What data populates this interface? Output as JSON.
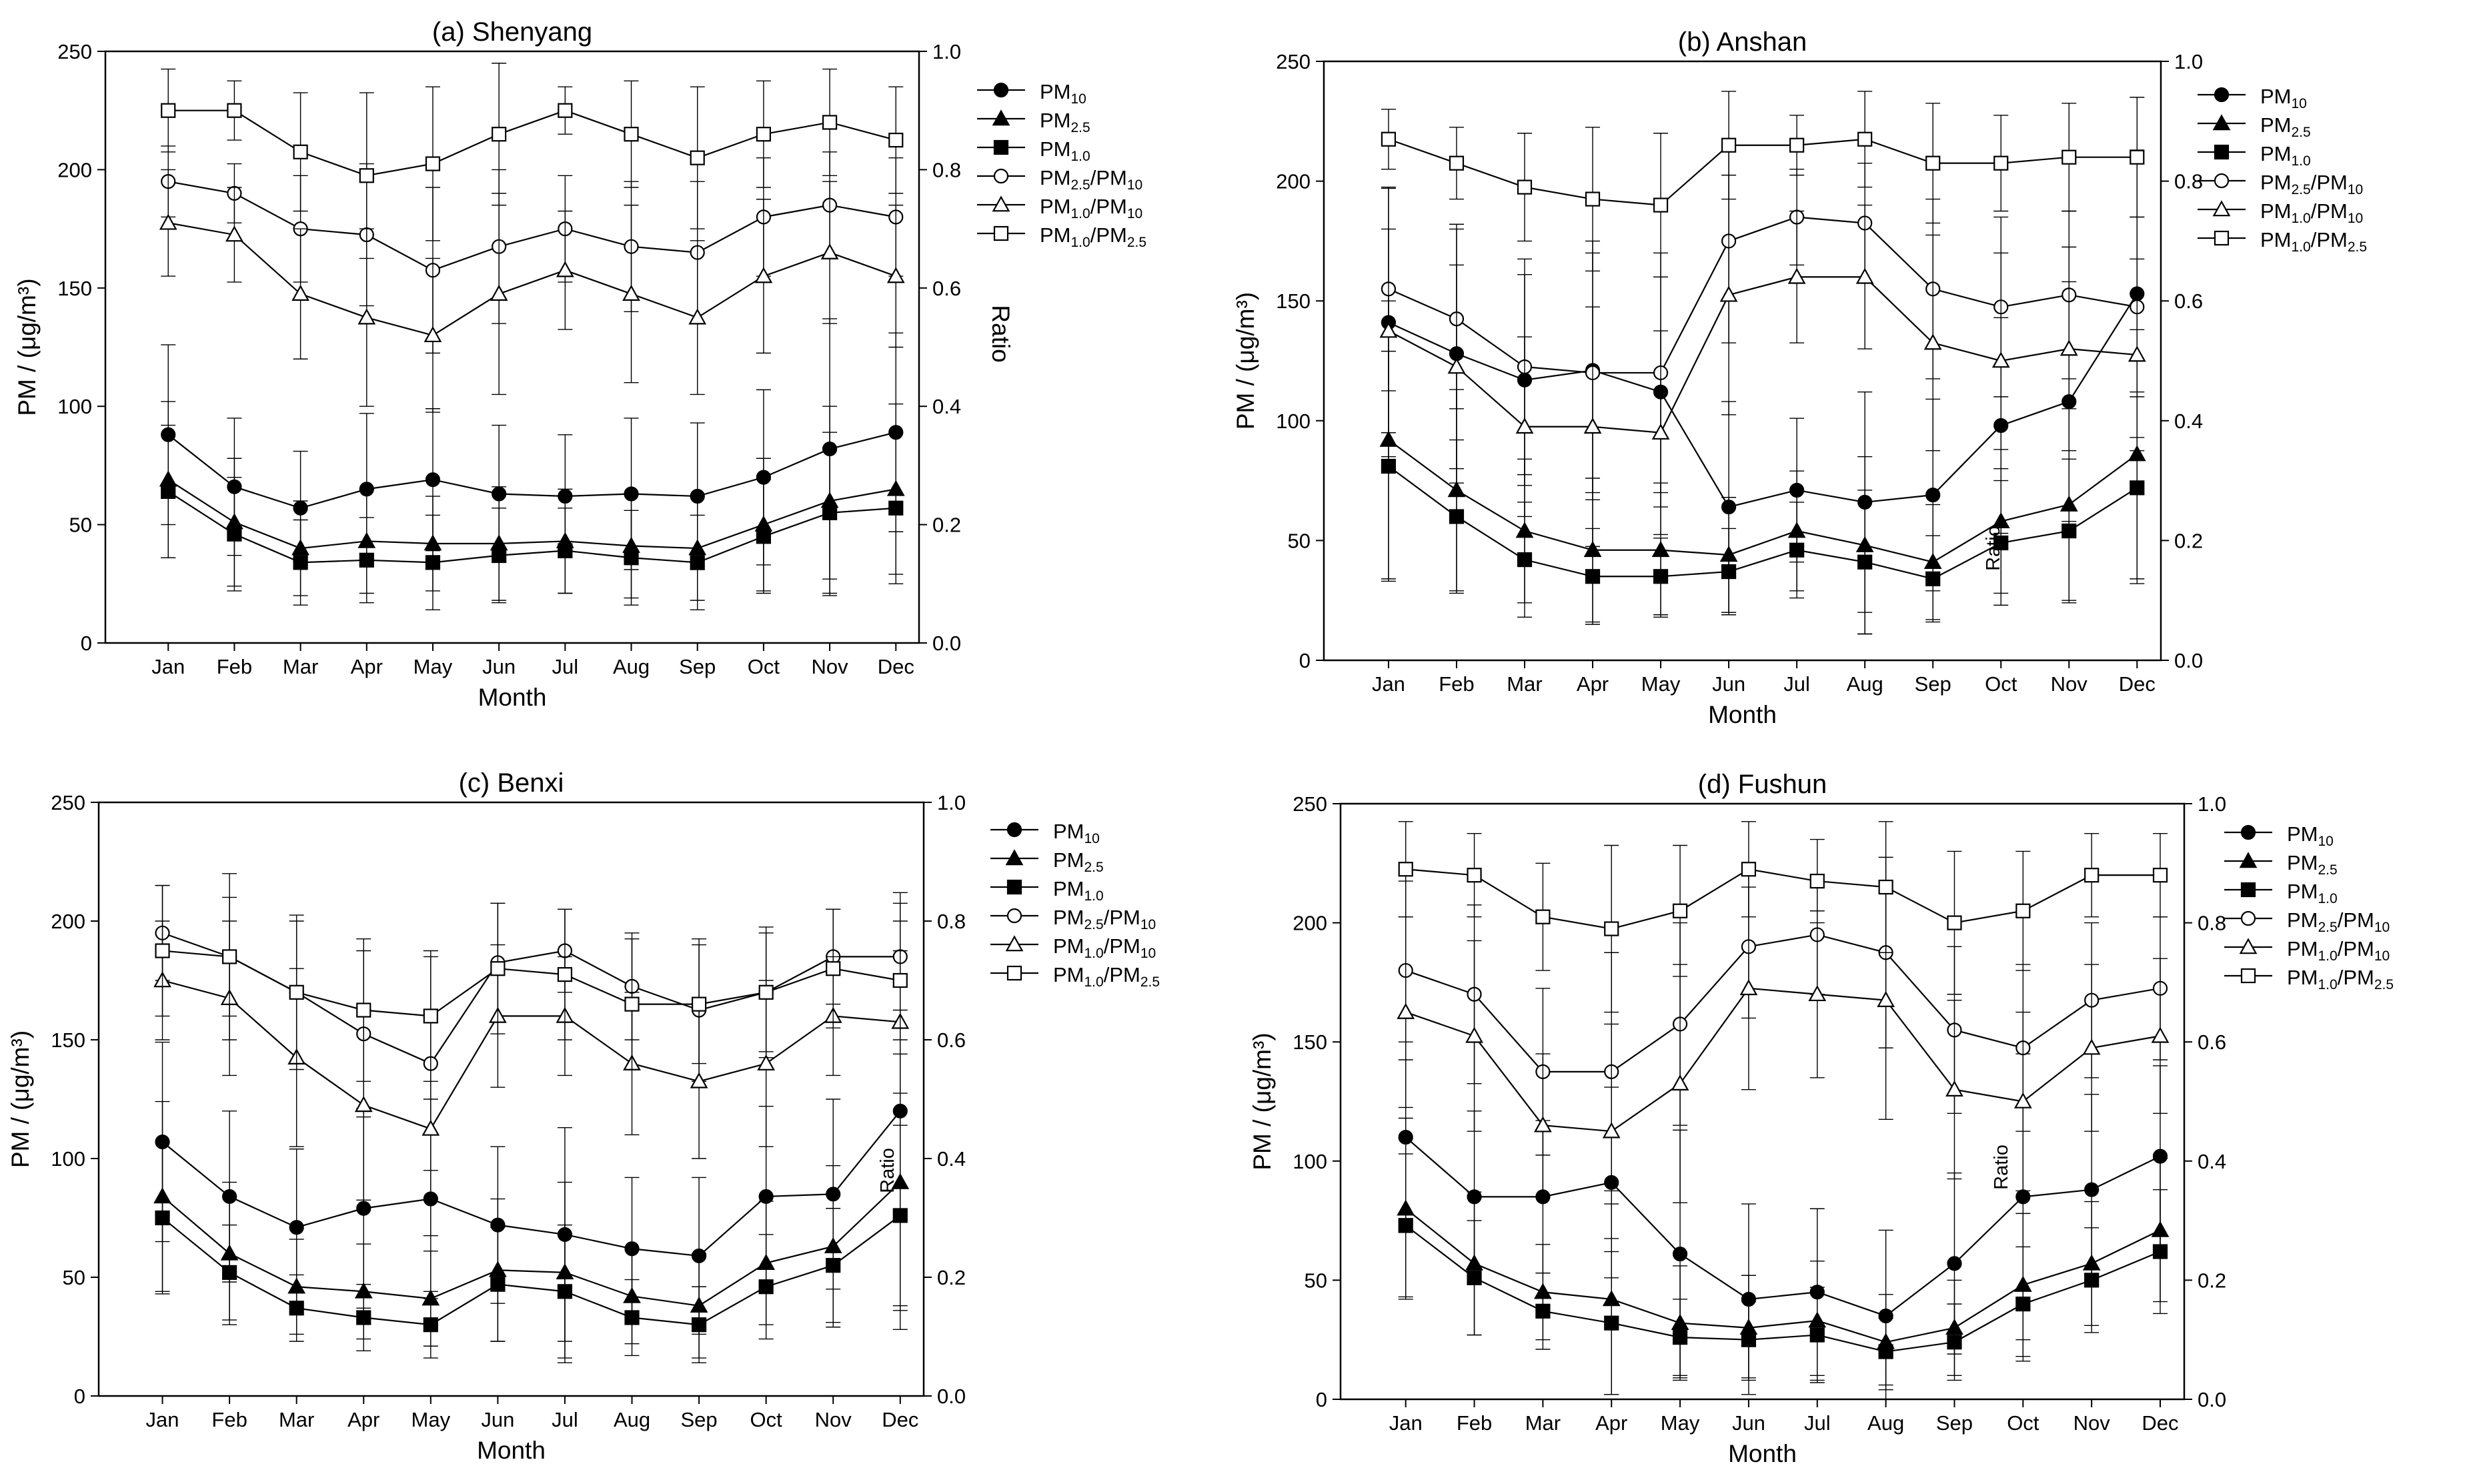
{
  "chart_data": [
    {
      "type": "line",
      "title": "(a) Shenyang",
      "xlabel": "Month",
      "ylabel": "PM / (μg/m³)",
      "y2label": "Ratio",
      "categories": [
        "Jan",
        "Feb",
        "Mar",
        "Apr",
        "May",
        "Jun",
        "Jul",
        "Aug",
        "Sep",
        "Oct",
        "Nov",
        "Dec"
      ],
      "ylim": [
        0,
        250
      ],
      "y2lim": [
        0.0,
        1.0
      ],
      "yticks": [
        "0",
        "50",
        "100",
        "150",
        "200",
        "250"
      ],
      "y2ticks": [
        "0.0",
        "0.2",
        "0.4",
        "0.6",
        "0.8",
        "1.0"
      ],
      "legend_position": "right",
      "series": [
        {
          "name": "PM10",
          "label_main": "PM",
          "label_sub": "10",
          "axis": "left",
          "marker": "circle",
          "filled": true,
          "values": [
            88,
            66,
            57,
            65,
            69,
            63,
            62,
            63,
            62,
            70,
            82,
            89
          ],
          "err": [
            38,
            29,
            24,
            32,
            30,
            29,
            26,
            32,
            31,
            37,
            55,
            42
          ]
        },
        {
          "name": "PM2.5",
          "label_main": "PM",
          "label_sub": "2.5",
          "axis": "left",
          "marker": "triangle",
          "filled": true,
          "values": [
            69,
            51,
            40,
            43,
            42,
            42,
            43,
            41,
            40,
            50,
            60,
            65
          ],
          "err": [
            33,
            27,
            20,
            22,
            20,
            24,
            22,
            22,
            22,
            28,
            40,
            36
          ]
        },
        {
          "name": "PM1.0",
          "label_main": "PM",
          "label_sub": "1.0",
          "axis": "left",
          "marker": "square",
          "filled": true,
          "values": [
            64,
            46,
            34,
            35,
            34,
            37,
            39,
            36,
            34,
            45,
            55,
            57
          ],
          "err": [
            28,
            24,
            18,
            18,
            20,
            20,
            18,
            20,
            20,
            24,
            34,
            32
          ]
        },
        {
          "name": "PM2.5/PM10",
          "label_main": "PM2.5/PM10",
          "axis": "right",
          "marker": "circle",
          "filled": false,
          "values": [
            0.78,
            0.76,
            0.7,
            0.69,
            0.63,
            0.67,
            0.7,
            0.67,
            0.66,
            0.72,
            0.74,
            0.72
          ],
          "err": [
            0.06,
            0.05,
            0.09,
            0.12,
            0.14,
            0.13,
            0.09,
            0.11,
            0.12,
            0.1,
            0.09,
            0.1
          ]
        },
        {
          "name": "PM1.0/PM10",
          "label_main": "PM1.0/PM10",
          "axis": "right",
          "marker": "triangle",
          "filled": false,
          "values": [
            0.71,
            0.69,
            0.59,
            0.55,
            0.52,
            0.59,
            0.63,
            0.59,
            0.55,
            0.62,
            0.66,
            0.62
          ],
          "err": [
            0.09,
            0.08,
            0.11,
            0.15,
            0.13,
            0.17,
            0.1,
            0.15,
            0.13,
            0.13,
            0.12,
            0.12
          ]
        },
        {
          "name": "PM1.0/PM2.5",
          "label_main": "PM1.0/PM2.5",
          "axis": "right",
          "marker": "square",
          "filled": false,
          "values": [
            0.9,
            0.9,
            0.83,
            0.79,
            0.81,
            0.86,
            0.9,
            0.86,
            0.82,
            0.86,
            0.88,
            0.85
          ],
          "err": [
            0.07,
            0.05,
            0.1,
            0.14,
            0.13,
            0.12,
            0.04,
            0.09,
            0.12,
            0.09,
            0.09,
            0.09
          ]
        }
      ]
    },
    {
      "type": "line",
      "title": "(b) Anshan",
      "xlabel": "Month",
      "ylabel": "PM / (μg/m³)",
      "y2label": "Ratio",
      "categories": [
        "Jan",
        "Feb",
        "Mar",
        "Apr",
        "May",
        "Jun",
        "Jul",
        "Aug",
        "Sep",
        "Oct",
        "Nov",
        "Dec"
      ],
      "ylim": [
        0,
        250
      ],
      "y2lim": [
        0.0,
        1.0
      ],
      "yticks": [
        "0",
        "50",
        "100",
        "150",
        "200",
        "250"
      ],
      "y2ticks": [
        "0.0",
        "0.2",
        "0.4",
        "0.6",
        "0.8",
        "1.0"
      ],
      "legend_position": "right",
      "series": [
        {
          "name": "PM10",
          "label_main": "PM",
          "label_sub": "10",
          "axis": "left",
          "marker": "circle",
          "filled": true,
          "values": [
            141,
            128,
            117,
            121,
            112,
            64,
            71,
            66,
            69,
            98,
            108,
            153
          ],
          "err": [
            56,
            54,
            44,
            54,
            48,
            44,
            30,
            46,
            40,
            45,
            50,
            60
          ]
        },
        {
          "name": "PM2.5",
          "label_main": "PM",
          "label_sub": "2.5",
          "axis": "left",
          "marker": "triangle",
          "filled": true,
          "values": [
            92,
            71,
            54,
            46,
            46,
            44,
            54,
            48,
            41,
            58,
            65,
            86
          ],
          "err": [
            58,
            42,
            30,
            30,
            28,
            24,
            25,
            37,
            24,
            30,
            40,
            52
          ]
        },
        {
          "name": "PM1.0",
          "label_main": "PM1.0",
          "label_sub": "1.0",
          "axis": "left",
          "marker": "square",
          "filled": true,
          "values": [
            81,
            60,
            42,
            35,
            35,
            37,
            46,
            41,
            34,
            49,
            54,
            72
          ],
          "err": [
            48,
            32,
            24,
            20,
            16,
            18,
            20,
            30,
            18,
            26,
            30,
            40
          ]
        },
        {
          "name": "PM2.5/PM10",
          "label_main": "PM2.5/PM10",
          "axis": "right",
          "marker": "circle",
          "filled": false,
          "values": [
            0.62,
            0.57,
            0.49,
            0.48,
            0.48,
            0.7,
            0.74,
            0.73,
            0.62,
            0.59,
            0.61,
            0.59
          ],
          "err": [
            0.17,
            0.15,
            0.18,
            0.2,
            0.2,
            0.17,
            0.08,
            0.1,
            0.15,
            0.15,
            0.14,
            0.15
          ]
        },
        {
          "name": "PM1.0/PM10",
          "label_main": "PM1.0/PM10",
          "axis": "right",
          "marker": "triangle",
          "filled": false,
          "values": [
            0.55,
            0.49,
            0.39,
            0.39,
            0.38,
            0.61,
            0.64,
            0.64,
            0.53,
            0.5,
            0.52,
            0.51
          ],
          "err": [
            0.17,
            0.17,
            0.15,
            0.2,
            0.17,
            0.2,
            0.11,
            0.12,
            0.18,
            0.18,
            0.17,
            0.16
          ]
        },
        {
          "name": "PM1.0/PM2.5",
          "label_main": "PM1.0/PM2.5",
          "axis": "right",
          "marker": "square",
          "filled": false,
          "values": [
            0.87,
            0.83,
            0.79,
            0.77,
            0.76,
            0.86,
            0.86,
            0.87,
            0.83,
            0.83,
            0.84,
            0.84
          ],
          "err": [
            0.05,
            0.06,
            0.09,
            0.12,
            0.12,
            0.09,
            0.05,
            0.08,
            0.1,
            0.08,
            0.09,
            0.1
          ]
        }
      ]
    },
    {
      "type": "line",
      "title": "(c) Benxi",
      "xlabel": "Month",
      "ylabel": "PM / (μg/m³)",
      "y2label": "Ratio",
      "categories": [
        "Jan",
        "Feb",
        "Mar",
        "Apr",
        "May",
        "Jun",
        "Jul",
        "Aug",
        "Sep",
        "Oct",
        "Nov",
        "Dec"
      ],
      "ylim": [
        0,
        250
      ],
      "y2lim": [
        0.0,
        1.0
      ],
      "yticks": [
        "0",
        "50",
        "100",
        "150",
        "200",
        "250"
      ],
      "y2ticks": [
        "0.0",
        "0.2",
        "0.4",
        "0.6",
        "0.8",
        "1.0"
      ],
      "legend_position": "right",
      "series": [
        {
          "name": "PM10",
          "label_main": "PM",
          "label_sub": "10",
          "axis": "left",
          "marker": "circle",
          "filled": true,
          "values": [
            107,
            84,
            71,
            79,
            83,
            72,
            68,
            62,
            59,
            84,
            85,
            120
          ],
          "err": [
            42,
            36,
            33,
            42,
            42,
            33,
            45,
            30,
            33,
            38,
            40,
            92
          ]
        },
        {
          "name": "PM2.5",
          "label_main": "PM",
          "label_sub": "2.5",
          "axis": "left",
          "marker": "triangle",
          "filled": true,
          "values": [
            84,
            60,
            46,
            44,
            41,
            53,
            52,
            42,
            38,
            56,
            63,
            90
          ],
          "err": [
            40,
            30,
            20,
            20,
            20,
            30,
            38,
            20,
            22,
            26,
            34,
            54
          ]
        },
        {
          "name": "PM1.0",
          "label_main": "PM",
          "label_sub": "1.0",
          "axis": "left",
          "marker": "square",
          "filled": true,
          "values": [
            75,
            52,
            37,
            33,
            30,
            47,
            44,
            33,
            30,
            46,
            55,
            76
          ],
          "err": [
            32,
            20,
            14,
            14,
            14,
            24,
            28,
            16,
            16,
            22,
            24,
            38
          ]
        },
        {
          "name": "PM2.5/PM10",
          "label_main": "PM2.5/PM10",
          "axis": "right",
          "marker": "circle",
          "filled": false,
          "values": [
            0.78,
            0.74,
            0.68,
            0.61,
            0.56,
            0.73,
            0.75,
            0.69,
            0.65,
            0.68,
            0.74,
            0.74
          ],
          "err": [
            0.08,
            0.1,
            0.13,
            0.14,
            0.18,
            0.1,
            0.07,
            0.09,
            0.12,
            0.11,
            0.08,
            0.09
          ]
        },
        {
          "name": "PM1.0/PM10",
          "label_main": "PM1.0/PM10",
          "axis": "right",
          "marker": "triangle",
          "filled": false,
          "values": [
            0.7,
            0.67,
            0.57,
            0.49,
            0.45,
            0.64,
            0.64,
            0.56,
            0.53,
            0.56,
            0.64,
            0.63
          ],
          "err": [
            0.1,
            0.13,
            0.15,
            0.16,
            0.18,
            0.12,
            0.1,
            0.12,
            0.13,
            0.14,
            0.1,
            0.12
          ]
        },
        {
          "name": "PM1.0/PM2.5",
          "label_main": "PM1.0/PM2.5",
          "axis": "right",
          "marker": "square",
          "filled": false,
          "values": [
            0.75,
            0.74,
            0.68,
            0.65,
            0.64,
            0.72,
            0.71,
            0.66,
            0.66,
            0.68,
            0.72,
            0.7
          ],
          "err": [
            0.11,
            0.14,
            0.12,
            0.12,
            0.11,
            0.11,
            0.11,
            0.11,
            0.1,
            0.1,
            0.1,
            0.1
          ]
        }
      ]
    },
    {
      "type": "line",
      "title": "(d) Fushun",
      "xlabel": "Month",
      "ylabel": "PM / (μg/m³)",
      "y2label": "Ratio",
      "categories": [
        "Jan",
        "Feb",
        "Mar",
        "Apr",
        "May",
        "Jun",
        "Jul",
        "Aug",
        "Sep",
        "Oct",
        "Nov",
        "Dec"
      ],
      "ylim": [
        0,
        250
      ],
      "y2lim": [
        0.0,
        1.0
      ],
      "yticks": [
        "0",
        "50",
        "100",
        "150",
        "200",
        "250"
      ],
      "y2ticks": [
        "0.0",
        "0.2",
        "0.4",
        "0.6",
        "0.8",
        "1.0"
      ],
      "legend_position": "right",
      "series": [
        {
          "name": "PM10",
          "label_main": "PM",
          "label_sub": "10",
          "axis": "left",
          "marker": "circle",
          "filled": true,
          "values": [
            110,
            85,
            85,
            91,
            61,
            42,
            45,
            35,
            57,
            85,
            88,
            102
          ],
          "err": [
            40,
            36,
            32,
            40,
            52,
            40,
            35,
            36,
            38,
            60,
            40,
            38
          ]
        },
        {
          "name": "PM2.5",
          "label_main": "PM",
          "label_sub": "2.5",
          "axis": "left",
          "marker": "triangle",
          "filled": true,
          "values": [
            80,
            57,
            45,
            42,
            32,
            30,
            33,
            24,
            30,
            48,
            57,
            71
          ],
          "err": [
            38,
            30,
            20,
            40,
            24,
            22,
            25,
            20,
            20,
            30,
            26,
            30
          ]
        },
        {
          "name": "PM1.0",
          "label_main": "PM",
          "label_sub": "1.0",
          "axis": "left",
          "marker": "square",
          "filled": true,
          "values": [
            73,
            51,
            37,
            32,
            26,
            25,
            27,
            20,
            24,
            40,
            50,
            62
          ],
          "err": [
            30,
            24,
            16,
            30,
            16,
            16,
            20,
            14,
            16,
            24,
            22,
            26
          ]
        },
        {
          "name": "PM2.5/PM10",
          "label_main": "PM2.5/PM10",
          "axis": "right",
          "marker": "circle",
          "filled": false,
          "values": [
            0.72,
            0.68,
            0.55,
            0.55,
            0.63,
            0.76,
            0.78,
            0.75,
            0.62,
            0.59,
            0.67,
            0.69
          ],
          "err": [
            0.15,
            0.15,
            0.14,
            0.2,
            0.17,
            0.12,
            0.1,
            0.16,
            0.14,
            0.14,
            0.13,
            0.12
          ]
        },
        {
          "name": "PM1.0/PM10",
          "label_main": "PM1.0/PM10",
          "axis": "right",
          "marker": "triangle",
          "filled": false,
          "values": [
            0.65,
            0.61,
            0.46,
            0.45,
            0.53,
            0.69,
            0.68,
            0.67,
            0.52,
            0.5,
            0.59,
            0.61
          ],
          "err": [
            0.16,
            0.16,
            0.12,
            0.18,
            0.2,
            0.17,
            0.14,
            0.2,
            0.15,
            0.15,
            0.14,
            0.13
          ]
        },
        {
          "name": "PM1.0/PM2.5",
          "label_main": "PM1.0/PM2.5",
          "axis": "right",
          "marker": "square",
          "filled": false,
          "values": [
            0.89,
            0.88,
            0.81,
            0.79,
            0.82,
            0.89,
            0.87,
            0.86,
            0.8,
            0.82,
            0.88,
            0.88
          ],
          "err": [
            0.08,
            0.07,
            0.09,
            0.14,
            0.11,
            0.08,
            0.07,
            0.11,
            0.12,
            0.1,
            0.07,
            0.07
          ]
        }
      ]
    }
  ],
  "annotations": {
    "b_inner_ratio": "Ratio",
    "c_inner_ratio": "Ratio",
    "d_inner_ratio": "Ratio"
  },
  "colors": {
    "ink": "#000000",
    "background": "#ffffff"
  }
}
